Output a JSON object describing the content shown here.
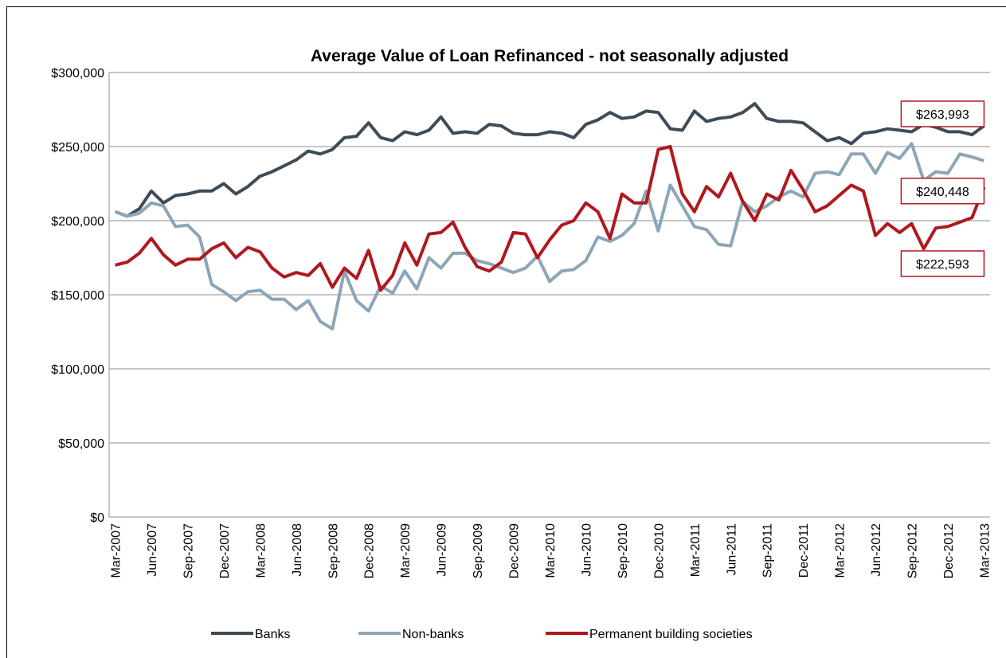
{
  "chart_data": {
    "type": "line",
    "title": "Average Value of Loan Refinanced - not seasonally adjusted",
    "categories": [
      "Mar-2007",
      null,
      null,
      "Jun-2007",
      null,
      null,
      "Sep-2007",
      null,
      null,
      "Dec-2007",
      null,
      null,
      "Mar-2008",
      null,
      null,
      "Jun-2008",
      null,
      null,
      "Sep-2008",
      null,
      null,
      "Dec-2008",
      null,
      null,
      "Mar-2009",
      null,
      null,
      "Jun-2009",
      null,
      null,
      "Sep-2009",
      null,
      null,
      "Dec-2009",
      null,
      null,
      "Mar-2010",
      null,
      null,
      "Jun-2010",
      null,
      null,
      "Sep-2010",
      null,
      null,
      "Dec-2010",
      null,
      null,
      "Mar-2011",
      null,
      null,
      "Jun-2011",
      null,
      null,
      "Sep-2011",
      null,
      null,
      "Dec-2011",
      null,
      null,
      "Mar-2012",
      null,
      null,
      "Jun-2012",
      null,
      null,
      "Sep-2012",
      null,
      null,
      "Dec-2012",
      null,
      null,
      "Mar-2013"
    ],
    "series": [
      {
        "name": "Banks",
        "color": "#3d4c57",
        "values": [
          206000,
          203000,
          208000,
          220000,
          212000,
          217000,
          218000,
          220000,
          220000,
          225000,
          218000,
          223000,
          230000,
          233000,
          237000,
          241000,
          247000,
          245000,
          248000,
          256000,
          257000,
          266000,
          256000,
          254000,
          260000,
          258000,
          261000,
          270000,
          259000,
          260000,
          259000,
          265000,
          264000,
          259000,
          258000,
          258000,
          260000,
          259000,
          256000,
          265000,
          268000,
          273000,
          269000,
          270000,
          274000,
          273000,
          262000,
          261000,
          274000,
          267000,
          269000,
          270000,
          273000,
          279000,
          269000,
          267000,
          267000,
          266000,
          260000,
          254000,
          256000,
          252000,
          259000,
          260000,
          262000,
          261000,
          260000,
          265000,
          263000,
          260000,
          260000,
          258000,
          263993
        ],
        "value_labels": [
          null,
          null,
          null,
          null,
          null,
          null,
          null,
          null,
          null,
          null,
          null,
          null,
          null,
          null,
          null,
          null,
          null,
          null,
          null,
          null,
          null,
          null,
          null,
          null,
          null,
          null,
          null,
          null,
          null,
          null,
          null,
          null,
          null,
          null,
          null,
          null,
          null,
          null,
          null,
          null,
          null,
          null,
          null,
          null,
          null,
          null,
          null,
          null,
          null,
          null,
          null,
          null,
          null,
          null,
          null,
          null,
          null,
          null,
          null,
          null,
          null,
          null,
          null,
          null,
          null,
          null,
          null,
          null,
          null,
          null,
          null,
          null,
          "$263,993"
        ]
      },
      {
        "name": "Non-banks",
        "color": "#8ca6b8",
        "values": [
          206000,
          203000,
          205000,
          212000,
          210000,
          196000,
          197000,
          189000,
          157000,
          152000,
          146000,
          152000,
          153000,
          147000,
          147000,
          140000,
          146000,
          132000,
          127000,
          166000,
          146000,
          139000,
          156000,
          151000,
          166000,
          154000,
          175000,
          168000,
          178000,
          178000,
          173000,
          171000,
          168000,
          165000,
          168000,
          176000,
          159000,
          166000,
          167000,
          173000,
          189000,
          186000,
          190000,
          198000,
          220000,
          193000,
          224000,
          210000,
          196000,
          194000,
          184000,
          183000,
          213000,
          206000,
          210000,
          216000,
          220000,
          216000,
          232000,
          233000,
          231000,
          245000,
          245000,
          232000,
          246000,
          242000,
          252000,
          227000,
          233000,
          232000,
          245000,
          243000,
          240448
        ],
        "value_labels": [
          null,
          null,
          null,
          null,
          null,
          null,
          null,
          null,
          null,
          null,
          null,
          null,
          null,
          null,
          null,
          null,
          null,
          null,
          null,
          null,
          null,
          null,
          null,
          null,
          null,
          null,
          null,
          null,
          null,
          null,
          null,
          null,
          null,
          null,
          null,
          null,
          null,
          null,
          null,
          null,
          null,
          null,
          null,
          null,
          null,
          null,
          null,
          null,
          null,
          null,
          null,
          null,
          null,
          null,
          null,
          null,
          null,
          null,
          null,
          null,
          null,
          null,
          null,
          null,
          null,
          null,
          null,
          null,
          null,
          null,
          null,
          null,
          "$240,448"
        ]
      },
      {
        "name": "Permanent building societies",
        "color": "#b0181e",
        "values": [
          170000,
          172000,
          178000,
          188000,
          177000,
          170000,
          174000,
          174000,
          181000,
          185000,
          175000,
          182000,
          179000,
          168000,
          162000,
          165000,
          163000,
          171000,
          155000,
          168000,
          161000,
          180000,
          153000,
          163000,
          185000,
          170000,
          191000,
          192000,
          199000,
          182000,
          169000,
          166000,
          172000,
          192000,
          191000,
          175000,
          187000,
          197000,
          200000,
          212000,
          206000,
          188000,
          218000,
          212000,
          212000,
          248000,
          250000,
          218000,
          206000,
          223000,
          216000,
          232000,
          213000,
          200000,
          218000,
          214000,
          234000,
          221000,
          206000,
          210000,
          217000,
          224000,
          220000,
          190000,
          198000,
          192000,
          198000,
          181000,
          195000,
          196000,
          199000,
          202000,
          222593
        ],
        "value_labels": [
          null,
          null,
          null,
          null,
          null,
          null,
          null,
          null,
          null,
          null,
          null,
          null,
          null,
          null,
          null,
          null,
          null,
          null,
          null,
          null,
          null,
          null,
          null,
          null,
          null,
          null,
          null,
          null,
          null,
          null,
          null,
          null,
          null,
          null,
          null,
          null,
          null,
          null,
          null,
          null,
          null,
          null,
          null,
          null,
          null,
          null,
          null,
          null,
          null,
          null,
          null,
          null,
          null,
          null,
          null,
          null,
          null,
          null,
          null,
          null,
          null,
          null,
          null,
          null,
          null,
          null,
          null,
          null,
          null,
          null,
          null,
          null,
          "$222,593"
        ]
      }
    ],
    "ylim": [
      0,
      300000
    ],
    "yticks": [
      {
        "value": 0,
        "label": "$0"
      },
      {
        "value": 50000,
        "label": "$50,000"
      },
      {
        "value": 100000,
        "label": "$100,000"
      },
      {
        "value": 150000,
        "label": "$150,000"
      },
      {
        "value": 200000,
        "label": "$200,000"
      },
      {
        "value": 250000,
        "label": "$250,000"
      },
      {
        "value": 300000,
        "label": "$300,000"
      }
    ],
    "grid": true,
    "legend": "bottom"
  }
}
